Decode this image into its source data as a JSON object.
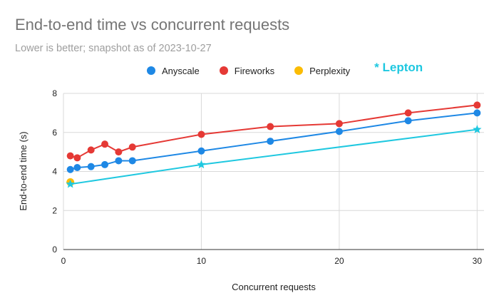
{
  "chart_data": {
    "type": "line",
    "title": "End-to-end time vs concurrent requests",
    "subtitle": "Lower is better; snapshot as of 2023-10-27",
    "xlabel": "Concurrent requests",
    "ylabel": "End-to-end time (s)",
    "xlim": [
      0,
      30.5
    ],
    "ylim": [
      0,
      8
    ],
    "x_ticks": [
      "0",
      "10",
      "20",
      "30"
    ],
    "y_ticks": [
      "0",
      "2",
      "4",
      "6",
      "8"
    ],
    "grid": true,
    "legend_position": "top",
    "series": [
      {
        "name": "Anyscale",
        "color": "#1e88e5",
        "marker": "circle",
        "points": [
          [
            0.5,
            4.1
          ],
          [
            1,
            4.2
          ],
          [
            2,
            4.25
          ],
          [
            3,
            4.35
          ],
          [
            4,
            4.55
          ],
          [
            5,
            4.55
          ],
          [
            10,
            5.05
          ],
          [
            15,
            5.55
          ],
          [
            20,
            6.05
          ],
          [
            25,
            6.6
          ],
          [
            30,
            7.0
          ]
        ]
      },
      {
        "name": "Fireworks",
        "color": "#e53935",
        "marker": "circle",
        "points": [
          [
            0.5,
            4.8
          ],
          [
            1,
            4.7
          ],
          [
            2,
            5.1
          ],
          [
            3,
            5.4
          ],
          [
            4,
            5.0
          ],
          [
            5,
            5.25
          ],
          [
            10,
            5.9
          ],
          [
            15,
            6.3
          ],
          [
            20,
            6.45
          ],
          [
            25,
            7.0
          ],
          [
            30,
            7.4
          ]
        ]
      },
      {
        "name": "Perplexity",
        "color": "#fbbc04",
        "marker": "circle",
        "points": [
          [
            0.5,
            3.45
          ]
        ]
      },
      {
        "name": "Lepton",
        "legend_label": "* Lepton",
        "color": "#1fc8e0",
        "marker": "star",
        "points": [
          [
            0.5,
            3.35
          ],
          [
            10,
            4.35
          ],
          [
            30,
            6.15
          ]
        ]
      }
    ]
  }
}
